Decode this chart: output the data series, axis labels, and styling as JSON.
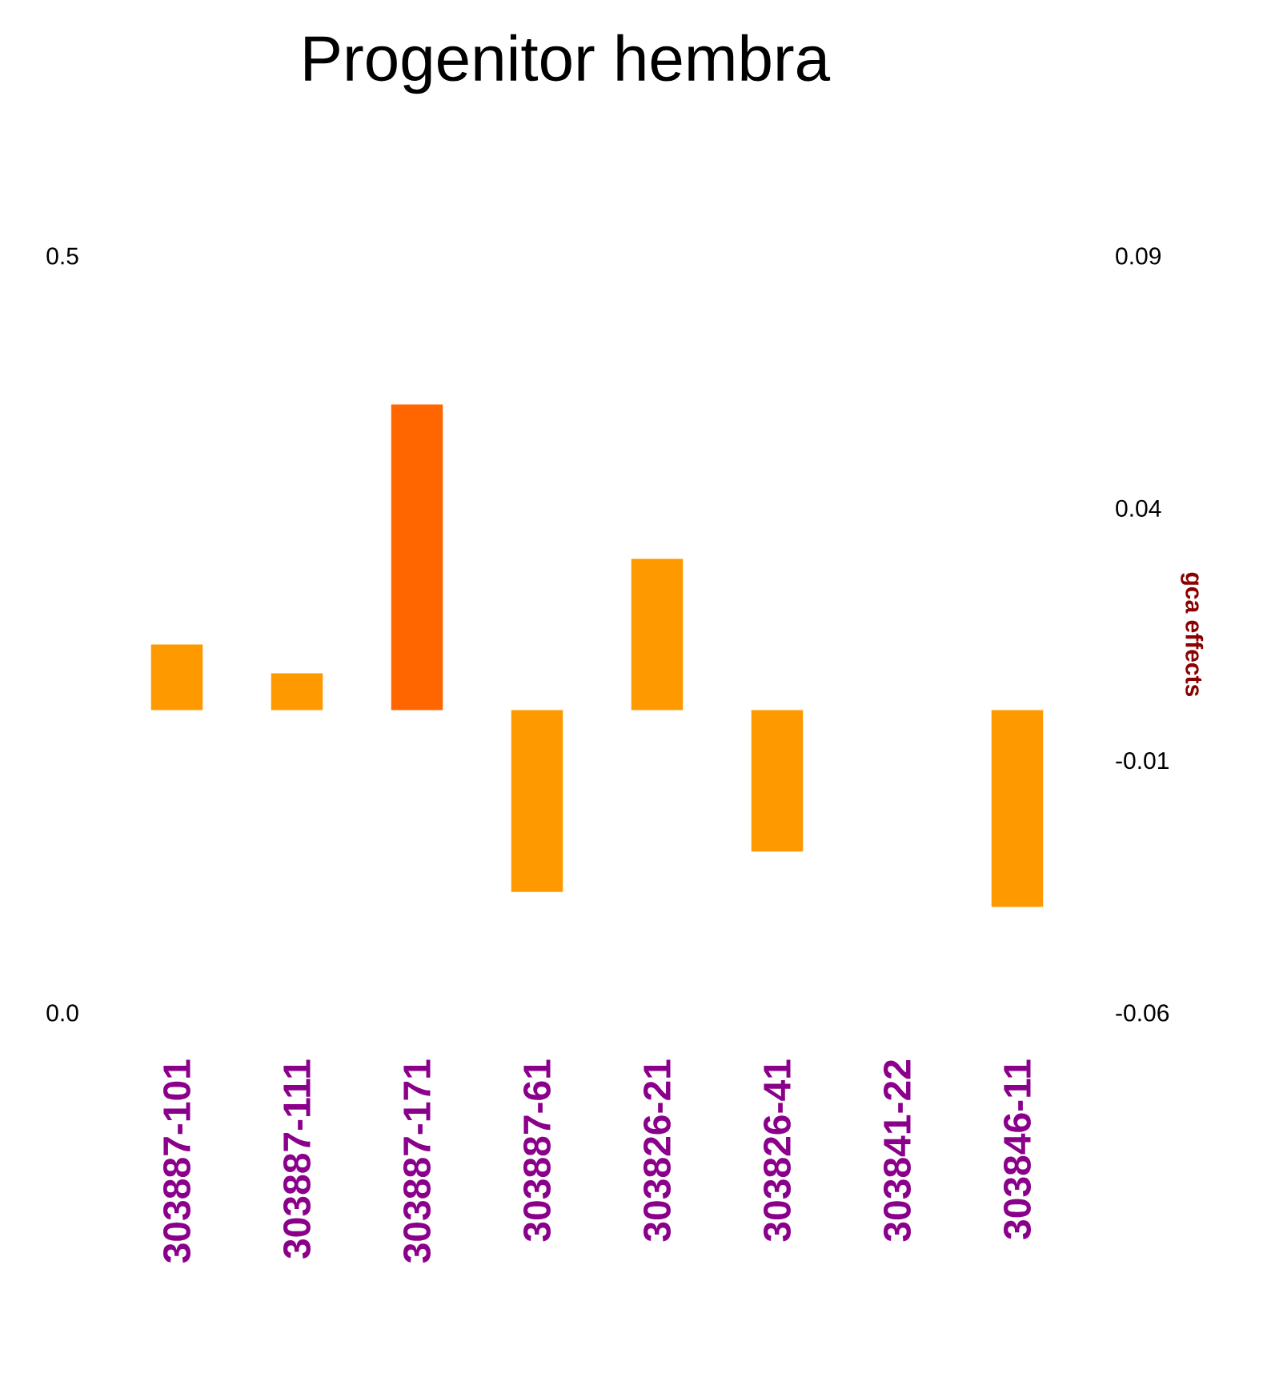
{
  "chart_data": {
    "type": "bar",
    "title": "Progenitor hembra",
    "y2label": "gca effects",
    "categories": [
      "303887-101",
      "303887-111",
      "303887-171",
      "303887-61",
      "303826-21",
      "303826-41",
      "303841-22",
      "303846-11"
    ],
    "series": [
      {
        "axis": "y2",
        "values": [
          0.013,
          0.0073,
          0.0606,
          -0.036,
          0.03,
          -0.028,
          0,
          -0.039
        ],
        "colors": [
          "#ff9900",
          "#ff9900",
          "#ff6600",
          "#ff9900",
          "#ff9900",
          "#ff9900",
          "#ff9900",
          "#ff9900"
        ]
      }
    ],
    "ylim": [
      0,
      0.5
    ],
    "yticks": [
      {
        "value": 0,
        "label": "0.0"
      },
      0.5
    ],
    "y2lim": [
      -0.06,
      0.09
    ],
    "y2ticks": [
      0.09,
      0.04,
      -0.01,
      -0.06
    ]
  }
}
